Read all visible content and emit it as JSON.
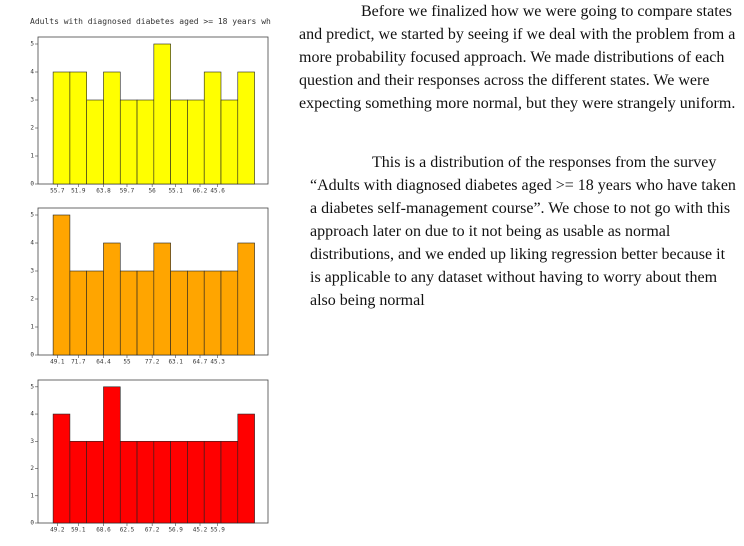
{
  "chart_data": [
    {
      "type": "histogram",
      "title": "Adults with diagnosed diabetes aged >= 18 years wh",
      "color": "#ffff00",
      "bins": [
        0,
        1,
        2,
        3,
        4,
        5,
        6,
        7,
        8,
        9,
        10,
        11,
        12
      ],
      "values": [
        4,
        4,
        3,
        4,
        3,
        3,
        5,
        3,
        3,
        4,
        3,
        4
      ],
      "xlim": [
        -0.9,
        12.8
      ],
      "xticks": [
        {
          "value": 0.25,
          "label": "55.7"
        },
        {
          "value": 1.5,
          "label": "51.9"
        },
        {
          "value": 3.0,
          "label": "63.8"
        },
        {
          "value": 4.4,
          "label": "59.7"
        },
        {
          "value": 5.9,
          "label": "56"
        },
        {
          "value": 7.3,
          "label": "55.1"
        },
        {
          "value": 8.75,
          "label": "66.2"
        },
        {
          "value": 9.8,
          "label": "45.6"
        }
      ],
      "ylim": [
        0,
        5.25
      ],
      "yticks": [
        0,
        1,
        2,
        3,
        4,
        5
      ]
    },
    {
      "type": "histogram",
      "color": "#ffa500",
      "bins": [
        0,
        1,
        2,
        3,
        4,
        5,
        6,
        7,
        8,
        9,
        10,
        11,
        12
      ],
      "values": [
        5,
        3,
        3,
        4,
        3,
        3,
        4,
        3,
        3,
        3,
        3,
        4
      ],
      "xlim": [
        -0.9,
        12.8
      ],
      "xticks": [
        {
          "value": 0.25,
          "label": "49.1"
        },
        {
          "value": 1.5,
          "label": "71.7"
        },
        {
          "value": 3.0,
          "label": "64.4"
        },
        {
          "value": 4.4,
          "label": "55"
        },
        {
          "value": 5.9,
          "label": "77.2"
        },
        {
          "value": 7.3,
          "label": "63.1"
        },
        {
          "value": 8.75,
          "label": "64.7"
        },
        {
          "value": 9.8,
          "label": "45.3"
        }
      ],
      "ylim": [
        0,
        5.25
      ],
      "yticks": [
        0,
        1,
        2,
        3,
        4,
        5
      ]
    },
    {
      "type": "histogram",
      "color": "#ff0000",
      "bins": [
        0,
        1,
        2,
        3,
        4,
        5,
        6,
        7,
        8,
        9,
        10,
        11,
        12
      ],
      "values": [
        4,
        3,
        3,
        5,
        3,
        3,
        3,
        3,
        3,
        3,
        3,
        4
      ],
      "xlim": [
        -0.9,
        12.8
      ],
      "xticks": [
        {
          "value": 0.25,
          "label": "49.2"
        },
        {
          "value": 1.5,
          "label": "59.1"
        },
        {
          "value": 3.0,
          "label": "68.6"
        },
        {
          "value": 4.4,
          "label": "62.5"
        },
        {
          "value": 5.9,
          "label": "67.2"
        },
        {
          "value": 7.3,
          "label": "56.9"
        },
        {
          "value": 8.75,
          "label": "45.2"
        },
        {
          "value": 9.8,
          "label": "55.9"
        }
      ],
      "ylim": [
        0,
        5.25
      ],
      "yticks": [
        0,
        1,
        2,
        3,
        4,
        5
      ]
    }
  ],
  "text": {
    "paragraphs": [
      "Before we finalized how we were going to compare states and predict, we started by seeing if we deal with the problem from a more probability focused approach. We made distributions of each question and their responses across the different states. We were expecting something more normal, but they were strangely uniform.",
      "This is a distribution of the responses from the survey “Adults with diagnosed diabetes aged >= 18 years who have taken a diabetes self-management course”. We chose to not go with this approach later on due to it not being as usable as normal distributions, and we ended up liking regression better because it is applicable to any dataset without having to worry about them also being normal"
    ]
  }
}
